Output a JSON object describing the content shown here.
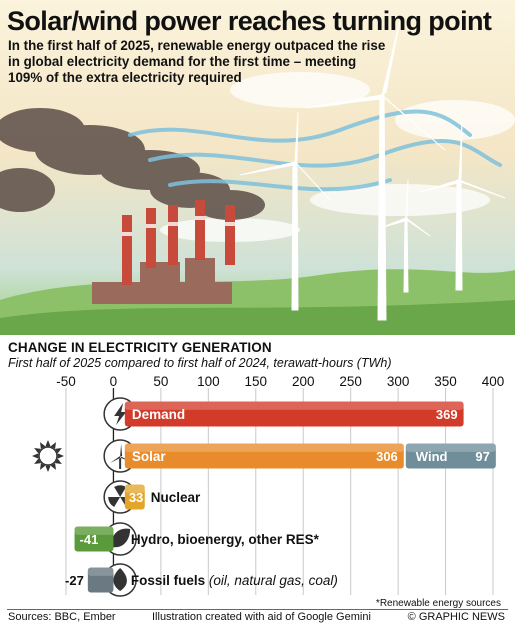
{
  "header": {
    "title": "Solar/wind power reaches turning point",
    "subtitle": "In the first half of 2025, renewable energy outpaced the rise in global electricity demand for the first time – meeting 109% of the extra electricity required"
  },
  "section": {
    "title": "CHANGE IN ELECTRICITY GENERATION",
    "subtitle": "First half of 2025 compared to first half of 2024, terawatt-hours (TWh)"
  },
  "chart_data": {
    "type": "bar",
    "orientation": "horizontal",
    "stacked": true,
    "xlim": [
      -50,
      400
    ],
    "ticks": [
      -50,
      0,
      50,
      100,
      150,
      200,
      250,
      300,
      350,
      400
    ],
    "tick_labels": [
      "-50",
      "0",
      "50",
      "100",
      "150",
      "200",
      "250",
      "300",
      "350",
      "400"
    ],
    "rows": [
      {
        "label": "Demand",
        "icon": "lightning-icon",
        "segments": [
          {
            "name": "Demand",
            "value": 369,
            "value_label": "369",
            "color": "#d23a2a"
          }
        ]
      },
      {
        "label": "Solar",
        "icon": "windmill-icon",
        "extra_icon": "sun-icon",
        "segments": [
          {
            "name": "Solar",
            "value": 306,
            "value_label": "306",
            "color": "#e88b2a"
          },
          {
            "name": "Wind",
            "value": 97,
            "value_label": "97",
            "color": "#6f8e99"
          }
        ]
      },
      {
        "label": "Nuclear",
        "icon": "radiation-icon",
        "segments": [
          {
            "name": "Nuclear",
            "value": 33,
            "value_label": "33",
            "color": "#e3a52a"
          }
        ]
      },
      {
        "label": "Hydro, bioenergy, other RES*",
        "icon": "leaf-icon",
        "segments": [
          {
            "name": "Hydro, bioenergy, other RES*",
            "value": -41,
            "value_label": "-41",
            "color": "#5a9a3a"
          }
        ]
      },
      {
        "label": "Fossil fuels",
        "label_suffix": "(oil, natural gas, coal)",
        "icon": "flame-icon",
        "segments": [
          {
            "name": "Fossil fuels",
            "value": -27,
            "value_label": "-27",
            "color": "#6b7a82"
          }
        ]
      }
    ]
  },
  "footer": {
    "footnote": "*Renewable energy sources",
    "sources": "Sources: BBC, Ember",
    "credit": "Illustration created with aid of Google Gemini",
    "brand": "© GRAPHIC NEWS"
  }
}
